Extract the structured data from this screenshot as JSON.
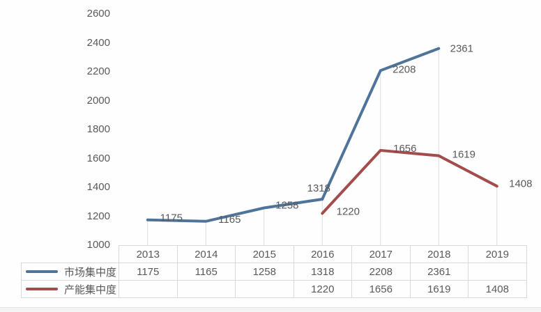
{
  "chart_data": {
    "type": "line",
    "title": "",
    "categories": [
      "2013",
      "2014",
      "2015",
      "2016",
      "2017",
      "2018",
      "2019"
    ],
    "series": [
      {
        "name": "市场集中度",
        "color": "#4f7499",
        "values": [
          1175,
          1165,
          1258,
          1318,
          2208,
          2361,
          null
        ],
        "labels": [
          {
            "text": "1175",
            "dx": 34,
            "dy": -3
          },
          {
            "text": "1165",
            "dx": 34,
            "dy": -3
          },
          {
            "text": "1258",
            "dx": 33,
            "dy": -4
          },
          {
            "text": "1318",
            "dx": -5,
            "dy": -16
          },
          {
            "text": "2208",
            "dx": 34,
            "dy": -2
          },
          {
            "text": "2361",
            "dx": 33,
            "dy": 0
          },
          null
        ]
      },
      {
        "name": "产能集中度",
        "color": "#a34c4c",
        "values": [
          null,
          null,
          null,
          1220,
          1656,
          1619,
          1408
        ],
        "labels": [
          null,
          null,
          null,
          {
            "text": "1220",
            "dx": 37,
            "dy": -3
          },
          {
            "text": "1656",
            "dx": 35,
            "dy": -3
          },
          {
            "text": "1619",
            "dx": 36,
            "dy": -2
          },
          {
            "text": "1408",
            "dx": 34,
            "dy": -4
          }
        ]
      }
    ],
    "ylim": [
      1000,
      2600
    ],
    "ytick_step": 200,
    "yticks": [
      2600,
      2400,
      2200,
      2000,
      1800,
      1600,
      1400,
      1200,
      1000
    ],
    "xlabel": "",
    "ylabel": "",
    "grid": "off",
    "drop_lines": true,
    "legend_position": "table-left",
    "colors": {
      "text": "#595959",
      "border": "#d6d9dd",
      "dropline": "#dcdcde"
    }
  },
  "table": {
    "columns": [
      "2013",
      "2014",
      "2015",
      "2016",
      "2017",
      "2018",
      "2019"
    ],
    "rows": [
      {
        "legend": "市场集中度",
        "values": [
          "1175",
          "1165",
          "1258",
          "1318",
          "2208",
          "2361",
          ""
        ]
      },
      {
        "legend": "产能集中度",
        "values": [
          "",
          "",
          "",
          "1220",
          "1656",
          "1619",
          "1408"
        ]
      }
    ]
  }
}
